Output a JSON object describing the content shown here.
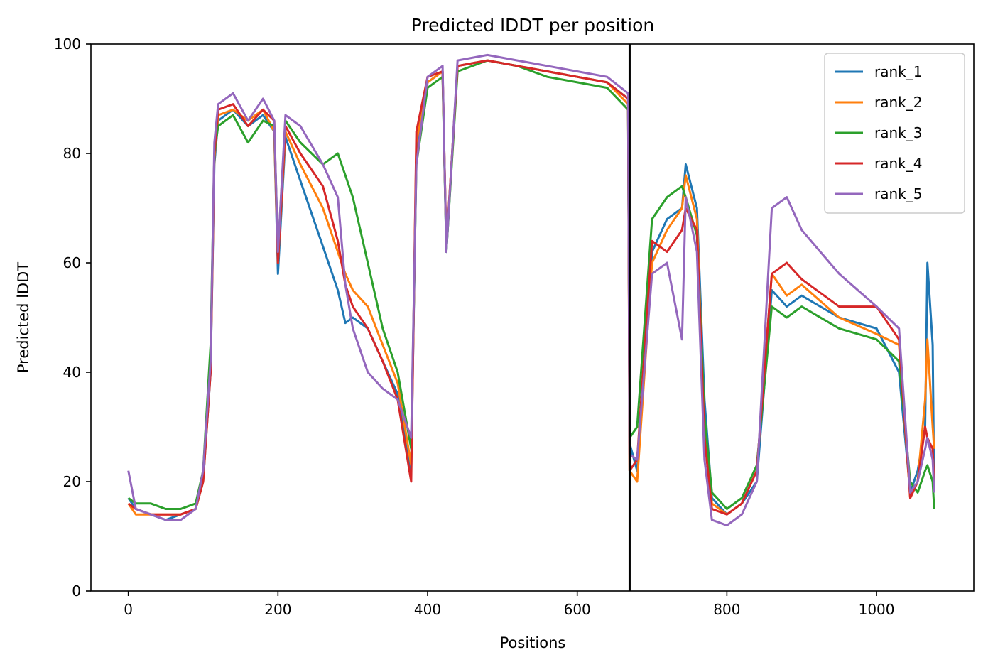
{
  "chart_data": {
    "type": "line",
    "title": "Predicted lDDT per position",
    "xlabel": "Positions",
    "ylabel": "Predicted lDDT",
    "xlim": [
      -50,
      1130
    ],
    "ylim": [
      0,
      100
    ],
    "xticks": [
      0,
      200,
      400,
      600,
      800,
      1000
    ],
    "yticks": [
      0,
      20,
      40,
      60,
      80,
      100
    ],
    "grid": false,
    "legend_position": "top-right",
    "chain_boundary_x": 670,
    "series": [
      {
        "name": "rank_1",
        "color": "#1f77b4",
        "x": [
          0,
          10,
          30,
          50,
          70,
          90,
          100,
          110,
          115,
          120,
          140,
          160,
          180,
          195,
          200,
          210,
          230,
          260,
          280,
          290,
          300,
          320,
          340,
          360,
          378,
          385,
          400,
          420,
          425,
          440,
          480,
          520,
          560,
          600,
          640,
          668,
          670,
          680,
          700,
          720,
          740,
          745,
          760,
          770,
          780,
          800,
          820,
          840,
          860,
          880,
          900,
          950,
          1000,
          1030,
          1045,
          1055,
          1065,
          1068,
          1075,
          1077
        ],
        "y": [
          17,
          15,
          14,
          13,
          14,
          15,
          20,
          40,
          78,
          86,
          88,
          85,
          87,
          84,
          58,
          83,
          75,
          63,
          55,
          49,
          50,
          48,
          42,
          36,
          22,
          80,
          93,
          95,
          62,
          96,
          97,
          96,
          95,
          94,
          93,
          90,
          27,
          22,
          62,
          68,
          70,
          78,
          70,
          35,
          17,
          14,
          16,
          20,
          55,
          52,
          54,
          50,
          48,
          40,
          18,
          22,
          30,
          60,
          45,
          18
        ]
      },
      {
        "name": "rank_2",
        "color": "#ff7f0e",
        "x": [
          0,
          10,
          30,
          50,
          70,
          90,
          100,
          110,
          115,
          120,
          140,
          160,
          180,
          195,
          200,
          210,
          230,
          260,
          280,
          290,
          300,
          320,
          340,
          360,
          378,
          385,
          400,
          420,
          425,
          440,
          480,
          520,
          560,
          600,
          640,
          668,
          670,
          680,
          700,
          720,
          740,
          745,
          760,
          770,
          780,
          800,
          820,
          840,
          860,
          880,
          900,
          950,
          1000,
          1030,
          1045,
          1055,
          1065,
          1068,
          1075,
          1077
        ],
        "y": [
          16,
          14,
          14,
          14,
          14,
          15,
          20,
          42,
          79,
          87,
          88,
          86,
          88,
          84,
          60,
          84,
          78,
          70,
          62,
          58,
          55,
          52,
          45,
          38,
          23,
          82,
          93,
          95,
          63,
          96,
          97,
          96,
          95,
          94,
          93,
          89,
          22,
          20,
          60,
          66,
          70,
          76,
          68,
          30,
          16,
          14,
          16,
          22,
          58,
          54,
          56,
          50,
          47,
          45,
          17,
          20,
          35,
          46,
          30,
          26
        ]
      },
      {
        "name": "rank_3",
        "color": "#2ca02c",
        "x": [
          0,
          10,
          30,
          50,
          70,
          90,
          100,
          110,
          115,
          120,
          140,
          160,
          180,
          195,
          200,
          210,
          230,
          260,
          280,
          290,
          300,
          320,
          340,
          360,
          378,
          385,
          400,
          420,
          425,
          440,
          480,
          520,
          560,
          600,
          640,
          668,
          670,
          680,
          700,
          720,
          740,
          745,
          760,
          770,
          780,
          800,
          820,
          840,
          860,
          880,
          900,
          950,
          1000,
          1030,
          1045,
          1055,
          1065,
          1068,
          1075,
          1077
        ],
        "y": [
          17,
          16,
          16,
          15,
          15,
          16,
          22,
          45,
          80,
          85,
          87,
          82,
          86,
          85,
          62,
          86,
          82,
          78,
          80,
          76,
          72,
          60,
          48,
          40,
          26,
          78,
          92,
          94,
          62,
          95,
          97,
          96,
          94,
          93,
          92,
          88,
          28,
          30,
          68,
          72,
          74,
          72,
          65,
          32,
          18,
          15,
          17,
          23,
          52,
          50,
          52,
          48,
          46,
          42,
          20,
          18,
          22,
          23,
          20,
          15
        ]
      },
      {
        "name": "rank_4",
        "color": "#d62728",
        "x": [
          0,
          10,
          30,
          50,
          70,
          90,
          100,
          110,
          115,
          120,
          140,
          160,
          180,
          195,
          200,
          210,
          230,
          260,
          280,
          290,
          300,
          320,
          340,
          360,
          378,
          385,
          400,
          420,
          425,
          440,
          480,
          520,
          560,
          600,
          640,
          668,
          670,
          680,
          700,
          720,
          740,
          745,
          760,
          770,
          780,
          800,
          820,
          840,
          860,
          880,
          900,
          950,
          1000,
          1030,
          1045,
          1055,
          1065,
          1068,
          1075,
          1077
        ],
        "y": [
          16,
          15,
          14,
          14,
          14,
          15,
          20,
          40,
          80,
          88,
          89,
          85,
          88,
          86,
          60,
          85,
          80,
          74,
          64,
          56,
          52,
          48,
          42,
          35,
          20,
          84,
          94,
          95,
          63,
          96,
          97,
          96,
          95,
          94,
          93,
          90,
          22,
          24,
          64,
          62,
          66,
          70,
          66,
          28,
          15,
          14,
          16,
          22,
          58,
          60,
          57,
          52,
          52,
          46,
          17,
          20,
          30,
          28,
          26,
          20
        ]
      },
      {
        "name": "rank_5",
        "color": "#9467bd",
        "x": [
          0,
          10,
          30,
          50,
          70,
          90,
          100,
          110,
          115,
          120,
          140,
          160,
          180,
          195,
          200,
          210,
          230,
          260,
          280,
          290,
          300,
          320,
          340,
          360,
          378,
          385,
          400,
          420,
          425,
          440,
          480,
          520,
          560,
          600,
          640,
          668,
          670,
          680,
          700,
          720,
          740,
          745,
          760,
          770,
          780,
          800,
          820,
          840,
          860,
          880,
          900,
          950,
          1000,
          1030,
          1045,
          1055,
          1065,
          1068,
          1075,
          1077
        ],
        "y": [
          22,
          15,
          14,
          13,
          13,
          15,
          22,
          42,
          82,
          89,
          91,
          86,
          90,
          86,
          62,
          87,
          85,
          78,
          72,
          56,
          48,
          40,
          37,
          35,
          28,
          78,
          94,
          96,
          62,
          97,
          98,
          97,
          96,
          95,
          94,
          91,
          25,
          24,
          58,
          60,
          46,
          72,
          62,
          24,
          13,
          12,
          14,
          20,
          70,
          72,
          66,
          58,
          52,
          48,
          18,
          20,
          26,
          28,
          24,
          18
        ]
      }
    ]
  }
}
